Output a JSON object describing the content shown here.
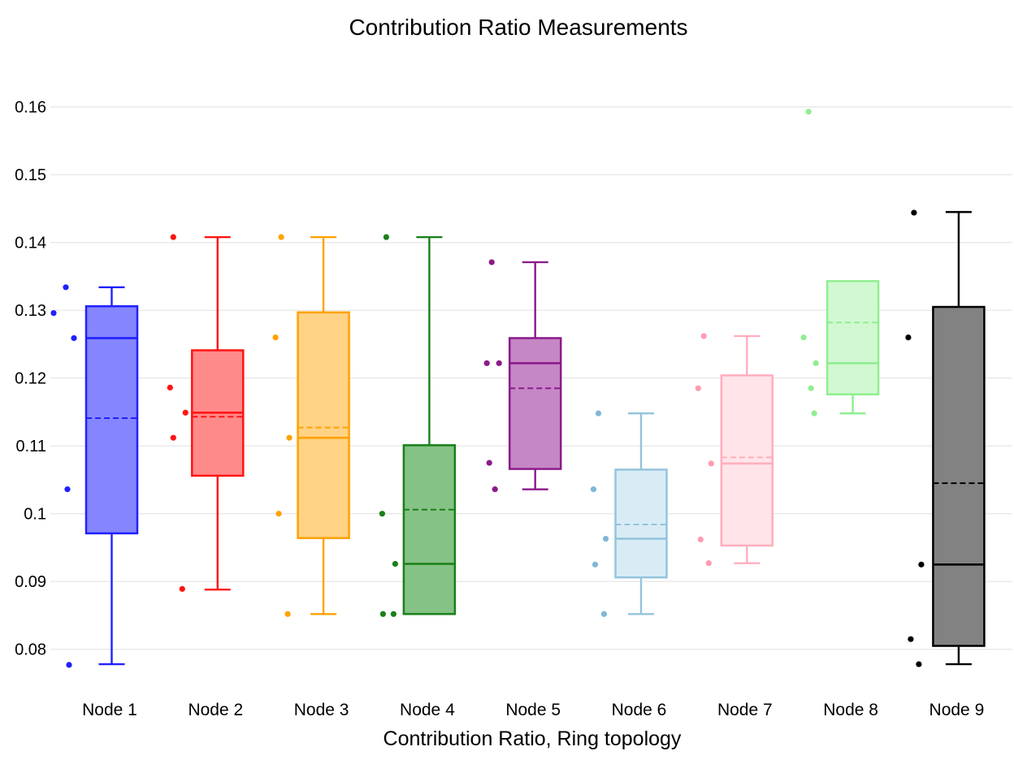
{
  "page": {
    "title": "Contribution Ratio Measurements",
    "background": "#ffffff"
  },
  "chart_data": {
    "type": "box",
    "title": "Contribution Ratio Measurements",
    "xlabel": "Contribution Ratio, Ring topology",
    "ylabel": "",
    "ylim": [
      0.075,
      0.164
    ],
    "grid": true,
    "legend": "none",
    "grid_color": "#e8e8e8",
    "text_color": "#000000",
    "y_ticks": {
      "values": [
        0.16,
        0.15,
        0.14,
        0.13,
        0.12,
        0.11,
        0.1,
        0.09,
        0.08
      ],
      "labels": [
        "0.16",
        "0.15",
        "0.14",
        "0.13",
        "0.12",
        "0.11",
        "0.1",
        "0.09",
        "0.08"
      ]
    },
    "categories": [
      "Node 1",
      "Node 2",
      "Node 3",
      "Node 4",
      "Node 5",
      "Node 6",
      "Node 7",
      "Node 8",
      "Node 9"
    ],
    "series": [
      {
        "label": "Node 1",
        "line_color": "#2020ff",
        "fill_color": "#8585ff",
        "point_color": "#2020ff",
        "box": {
          "min": 0.0778,
          "q1": 0.0971,
          "median": 0.1259,
          "mean": 0.1141,
          "q3": 0.1306,
          "max": 0.1334
        },
        "points": [
          {
            "value": 0.1334,
            "dx": -0.5
          },
          {
            "value": 0.1296,
            "dx": -15.5
          },
          {
            "value": 0.1259,
            "dx": 9.5
          },
          {
            "value": 0.1036,
            "dx": 1.5
          },
          {
            "value": 0.0777,
            "dx": 3.5
          }
        ]
      },
      {
        "label": "Node 2",
        "line_color": "#ff1414",
        "fill_color": "#ff8a8a",
        "point_color": "#ff1414",
        "box": {
          "min": 0.0888,
          "q1": 0.1056,
          "median": 0.1149,
          "mean": 0.1143,
          "q3": 0.1241,
          "max": 0.1408
        },
        "points": [
          {
            "value": 0.1408,
            "dx": 1.5
          },
          {
            "value": 0.1186,
            "dx": -2.5
          },
          {
            "value": 0.1149,
            "dx": 16.5
          },
          {
            "value": 0.1112,
            "dx": 1.5
          },
          {
            "value": 0.0889,
            "dx": 12.5
          }
        ]
      },
      {
        "label": "Node 3",
        "line_color": "#ffa200",
        "fill_color": "#ffd285",
        "point_color": "#ffa200",
        "box": {
          "min": 0.0852,
          "q1": 0.0964,
          "median": 0.1112,
          "mean": 0.1127,
          "q3": 0.1297,
          "max": 0.1408
        },
        "points": [
          {
            "value": 0.1408,
            "dx": 4
          },
          {
            "value": 0.126,
            "dx": -3
          },
          {
            "value": 0.1112,
            "dx": 14
          },
          {
            "value": 0.1,
            "dx": 1
          },
          {
            "value": 0.0852,
            "dx": 12
          }
        ]
      },
      {
        "label": "Node 4",
        "line_color": "#198019",
        "fill_color": "#85c285",
        "point_color": "#198019",
        "box": {
          "min": 0.0852,
          "q1": 0.0852,
          "median": 0.0926,
          "mean": 0.1006,
          "q3": 0.1101,
          "max": 0.1408
        },
        "points": [
          {
            "value": 0.1408,
            "dx": 3
          },
          {
            "value": 0.1,
            "dx": -2
          },
          {
            "value": 0.0926,
            "dx": 14
          },
          {
            "value": 0.0852,
            "dx": -1
          },
          {
            "value": 0.0852,
            "dx": 12
          }
        ]
      },
      {
        "label": "Node 5",
        "line_color": "#8b1a8b",
        "fill_color": "#c687c6",
        "point_color": "#8b1a8b",
        "box": {
          "min": 0.1036,
          "q1": 0.1066,
          "median": 0.1222,
          "mean": 0.1185,
          "q3": 0.1259,
          "max": 0.1371
        },
        "points": [
          {
            "value": 0.1371,
            "dx": 2.5
          },
          {
            "value": 0.1222,
            "dx": -3.5
          },
          {
            "value": 0.1222,
            "dx": 11.5
          },
          {
            "value": 0.1075,
            "dx": -0.5
          },
          {
            "value": 0.1036,
            "dx": 6.5
          }
        ]
      },
      {
        "label": "Node 6",
        "line_color": "#94c4dc",
        "fill_color": "#d9ecf5",
        "point_color": "#7fb8d6",
        "box": {
          "min": 0.0852,
          "q1": 0.0906,
          "median": 0.0963,
          "mean": 0.0984,
          "q3": 0.1065,
          "max": 0.1148
        },
        "points": [
          {
            "value": 0.1148,
            "dx": 3.5
          },
          {
            "value": 0.1036,
            "dx": -2.5
          },
          {
            "value": 0.0963,
            "dx": 12.5
          },
          {
            "value": 0.0925,
            "dx": -0.5
          },
          {
            "value": 0.0852,
            "dx": 10.5
          }
        ]
      },
      {
        "label": "Node 7",
        "line_color": "#ffaebd",
        "fill_color": "#ffe4ea",
        "point_color": "#ff9cb0",
        "box": {
          "min": 0.0927,
          "q1": 0.0953,
          "median": 0.1074,
          "mean": 0.1083,
          "q3": 0.1204,
          "max": 0.1262
        },
        "points": [
          {
            "value": 0.1262,
            "dx": 3
          },
          {
            "value": 0.1185,
            "dx": -4
          },
          {
            "value": 0.1074,
            "dx": 12
          },
          {
            "value": 0.0962,
            "dx": -1
          },
          {
            "value": 0.0927,
            "dx": 9
          }
        ]
      },
      {
        "label": "Node 8",
        "line_color": "#90ee90",
        "fill_color": "#d2f8d2",
        "point_color": "#90ee90",
        "box": {
          "min": 0.1148,
          "q1": 0.1176,
          "median": 0.1222,
          "mean": 0.1282,
          "q3": 0.1343,
          "max": 0.1343
        },
        "points": [
          {
            "value": 0.1593,
            "dx": 1.5
          },
          {
            "value": 0.126,
            "dx": -4.5
          },
          {
            "value": 0.1222,
            "dx": 10.5
          },
          {
            "value": 0.1185,
            "dx": 4.5
          },
          {
            "value": 0.1148,
            "dx": 8.5
          }
        ]
      },
      {
        "label": "Node 9",
        "line_color": "#000000",
        "fill_color": "#828282",
        "point_color": "#000000",
        "box": {
          "min": 0.0778,
          "q1": 0.0805,
          "median": 0.0925,
          "mean": 0.1045,
          "q3": 0.1305,
          "max": 0.1445
        },
        "points": [
          {
            "value": 0.1444,
            "dx": 1
          },
          {
            "value": 0.126,
            "dx": -6
          },
          {
            "value": 0.0925,
            "dx": 10
          },
          {
            "value": 0.0815,
            "dx": -3
          },
          {
            "value": 0.0778,
            "dx": 7
          }
        ]
      }
    ]
  }
}
